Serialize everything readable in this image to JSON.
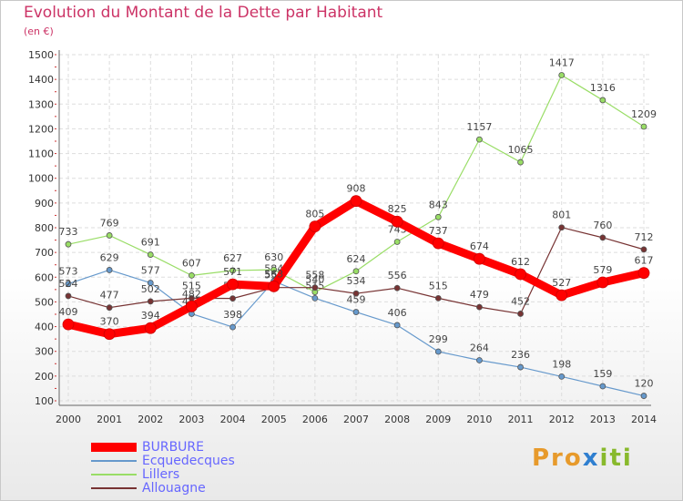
{
  "title": "Evolution du Montant de la Dette par Habitant",
  "unit_label": "(en €)",
  "logo": {
    "part1": "Pro",
    "part2": "x",
    "part3": "iti"
  },
  "chart_data": {
    "type": "line",
    "grid": true,
    "legend_position": "bottom-left",
    "ylim": [
      100,
      1500
    ],
    "y_ticks": [
      100,
      200,
      300,
      400,
      500,
      600,
      700,
      800,
      900,
      1000,
      1100,
      1200,
      1300,
      1400,
      1500
    ],
    "x": [
      "2000",
      "2001",
      "2002",
      "2003",
      "2004",
      "2005",
      "2006",
      "2007",
      "2008",
      "2009",
      "2010",
      "2011",
      "2012",
      "2013",
      "2014"
    ],
    "series": [
      {
        "name": "Ecquedecques",
        "color": "#6699cc",
        "width": 1.2,
        "values": [
          573,
          629,
          577,
          452,
          398,
          584,
          515,
          459,
          406,
          299,
          264,
          236,
          198,
          159,
          120
        ]
      },
      {
        "name": "Lillers",
        "color": "#99dd66",
        "width": 1.2,
        "values": [
          733,
          769,
          691,
          607,
          627,
          630,
          540,
          624,
          743,
          843,
          1157,
          1065,
          1417,
          1316,
          1209
        ]
      },
      {
        "name": "Allouagne",
        "color": "#773333",
        "width": 1.2,
        "values": [
          524,
          477,
          502,
          515,
          514,
          558,
          558,
          534,
          556,
          515,
          479,
          452,
          801,
          760,
          712
        ]
      },
      {
        "name": "BURBURE",
        "color": "#ff0000",
        "width": 9,
        "values": [
          409,
          370,
          394,
          482,
          571,
          563,
          805,
          908,
          825,
          737,
          674,
          612,
          527,
          579,
          617
        ]
      }
    ],
    "legend_order": [
      "BURBURE",
      "Ecquedecques",
      "Lillers",
      "Allouagne"
    ]
  }
}
